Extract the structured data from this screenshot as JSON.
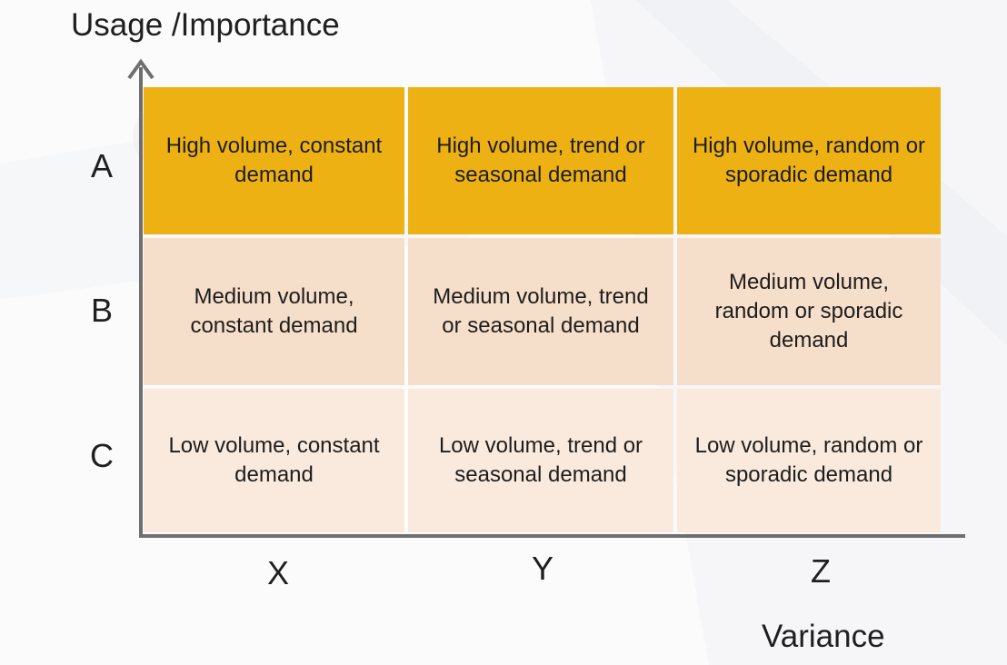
{
  "axes": {
    "y_title": "Usage /Importance",
    "x_title": "Variance"
  },
  "rows": [
    "A",
    "B",
    "C"
  ],
  "columns": [
    "X",
    "Y",
    "Z"
  ],
  "cells": [
    [
      "High volume, constant demand",
      "High volume, trend or seasonal demand",
      "High volume, random or sporadic demand"
    ],
    [
      "Medium volume, constant demand",
      "Medium volume, trend or seasonal demand",
      "Medium volume, random or sporadic demand"
    ],
    [
      "Low volume, constant demand",
      "Low volume, trend or seasonal demand",
      "Low volume, random or sporadic demand"
    ]
  ],
  "colors": {
    "row_a": "#eeb114",
    "row_b": "#f6dfca",
    "row_c": "#faeadd",
    "axis": "#6f6f6f"
  }
}
